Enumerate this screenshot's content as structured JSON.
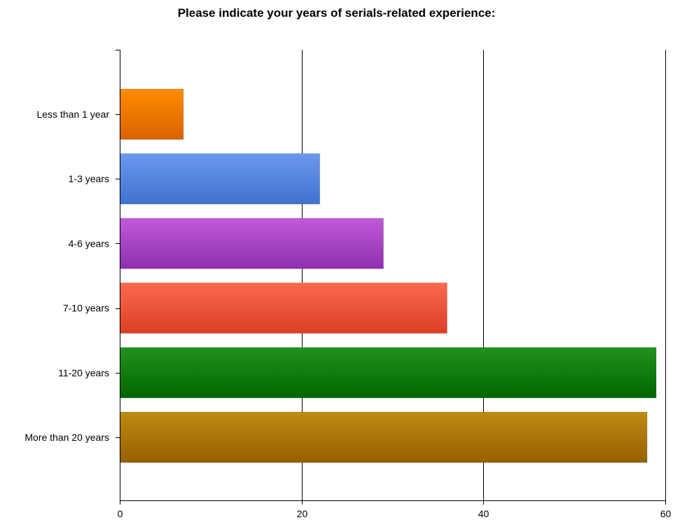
{
  "chart_data": {
    "type": "bar",
    "orientation": "horizontal",
    "title": "Please indicate your years of serials-related experience:",
    "xlabel": "",
    "ylabel": "",
    "categories": [
      "Less than 1 year",
      "1-3 years",
      "4-6 years",
      "7-10 years",
      "11-20 years",
      "More than 20 years"
    ],
    "values": [
      7,
      22,
      29,
      36,
      59,
      58
    ],
    "xlim": [
      0,
      60
    ],
    "xticks": [
      "0",
      "20",
      "40",
      "60"
    ],
    "grid": true,
    "legend": "none",
    "colors": [
      [
        "#ff8c00",
        "#d96200"
      ],
      [
        "#6a98ec",
        "#3f72cf"
      ],
      [
        "#c05ad8",
        "#8e2fb0"
      ],
      [
        "#fa6a50",
        "#dc3f24"
      ],
      [
        "#22921e",
        "#006600"
      ],
      [
        "#bf8b10",
        "#966000"
      ]
    ]
  }
}
